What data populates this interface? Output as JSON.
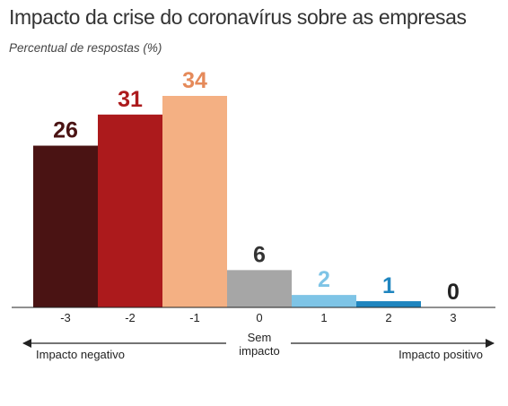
{
  "chart_data": {
    "type": "bar",
    "title": "Impacto da crise do coronavírus sobre as empresas",
    "subtitle": "Percentual de respostas (%)",
    "categories": [
      "-3",
      "-2",
      "-1",
      "0",
      "1",
      "2",
      "3"
    ],
    "values": [
      26,
      31,
      34,
      6,
      2,
      1,
      0
    ],
    "bar_colors": [
      "#4a1313",
      "#ac1a1c",
      "#f4b083",
      "#a6a6a6",
      "#7ec4e6",
      "#1f85bf",
      "#1f85bf"
    ],
    "label_colors": [
      "#4a1313",
      "#ac1a1c",
      "#e58a5a",
      "#333333",
      "#7ec4e6",
      "#1f85bf",
      "#222222"
    ],
    "ylim": [
      0,
      34
    ],
    "grid": false,
    "annotations": {
      "negative": "Impacto negativo",
      "neutral_line1": "Sem",
      "neutral_line2": "impacto",
      "positive": "Impacto positivo"
    }
  }
}
